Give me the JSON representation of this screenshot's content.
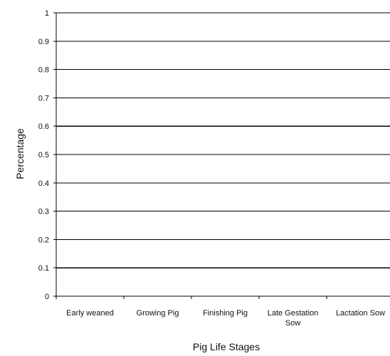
{
  "chart_data": {
    "type": "bar",
    "title": "",
    "xlabel": "Pig Life Stages",
    "ylabel": "Percentage",
    "categories": [
      [
        "Early weaned"
      ],
      [
        "Growing Pig"
      ],
      [
        "Finishing Pig"
      ],
      [
        "Late Gestation",
        "Sow"
      ],
      [
        "Lactation Sow"
      ]
    ],
    "y_ticks": [
      "0",
      "0.1",
      "0.2",
      "0.3",
      "0.4",
      "0.5",
      "0.6",
      "0.7",
      "0.8",
      "0.9",
      "1"
    ],
    "ylim": [
      0,
      1
    ],
    "grid": true,
    "legend": "none",
    "series": [],
    "colors": {
      "axis": "#000000",
      "grid": "#000000",
      "text": "#111111",
      "background": "#ffffff"
    }
  }
}
